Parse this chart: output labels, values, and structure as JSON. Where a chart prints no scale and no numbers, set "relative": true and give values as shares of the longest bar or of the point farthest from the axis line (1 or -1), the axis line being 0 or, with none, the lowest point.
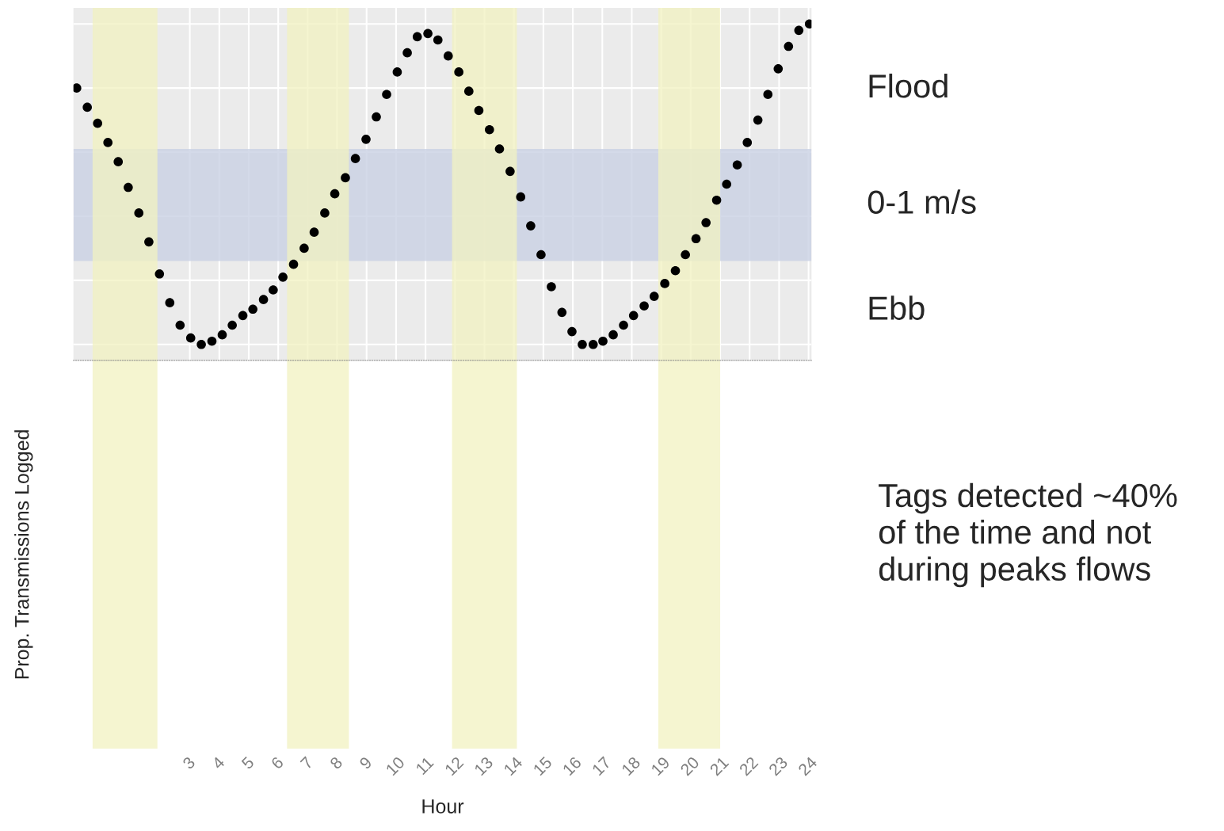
{
  "chart_data": {
    "type": "scatter",
    "relative": true,
    "xlabel": "Hour",
    "ylabel": "Prop. Transmissions Logged",
    "xlim": [
      -0.95,
      24.1
    ],
    "xticks": [
      3,
      4,
      5,
      6,
      7,
      8,
      9,
      10,
      11,
      12,
      13,
      14,
      15,
      16,
      17,
      18,
      19,
      20,
      21,
      22,
      23,
      24
    ],
    "tick_labels": "x",
    "grid": true,
    "marker": "circle",
    "series": [
      {
        "color": "#000000",
        "x": [
          -0.84,
          -0.48,
          -0.13,
          0.22,
          0.57,
          0.91,
          1.27,
          1.61,
          1.97,
          2.32,
          2.67,
          3.03,
          3.39,
          3.75,
          4.1,
          4.44,
          4.8,
          5.14,
          5.5,
          5.83,
          6.16,
          6.52,
          6.88,
          7.22,
          7.58,
          7.92,
          8.28,
          8.62,
          8.98,
          9.33,
          9.68,
          10.04,
          10.38,
          10.72,
          11.08,
          11.42,
          11.77,
          12.13,
          12.47,
          12.81,
          13.17,
          13.51,
          13.87,
          14.23,
          14.57,
          14.92,
          15.27,
          15.63,
          15.97,
          16.32,
          16.69,
          17.02,
          17.37,
          17.72,
          18.06,
          18.42,
          18.76,
          19.12,
          19.48,
          19.82,
          20.18,
          20.52,
          20.88,
          21.22,
          21.58,
          21.92,
          22.28,
          22.62,
          22.97,
          23.32,
          23.67,
          24.03
        ],
        "values": [
          0.8,
          0.74,
          0.69,
          0.63,
          0.57,
          0.49,
          0.41,
          0.32,
          0.22,
          0.13,
          0.06,
          0.02,
          0.0,
          0.01,
          0.03,
          0.06,
          0.09,
          0.11,
          0.14,
          0.17,
          0.21,
          0.25,
          0.3,
          0.35,
          0.41,
          0.47,
          0.52,
          0.58,
          0.64,
          0.71,
          0.78,
          0.85,
          0.91,
          0.96,
          0.97,
          0.95,
          0.9,
          0.85,
          0.79,
          0.73,
          0.67,
          0.61,
          0.54,
          0.46,
          0.37,
          0.28,
          0.18,
          0.1,
          0.04,
          0.0,
          0.0,
          0.01,
          0.03,
          0.06,
          0.09,
          0.12,
          0.15,
          0.19,
          0.23,
          0.28,
          0.33,
          0.38,
          0.45,
          0.5,
          0.56,
          0.63,
          0.7,
          0.78,
          0.86,
          0.93,
          0.98,
          1.0
        ]
      }
    ],
    "bands": [
      {
        "axis": "y",
        "from": 0.26,
        "to": 0.61,
        "label": "0-1 m/s",
        "color": "#c9d1e3"
      },
      {
        "axis": "x",
        "from": -0.3,
        "to": 1.9,
        "color": "#f1f1c0"
      },
      {
        "axis": "x",
        "from": 6.3,
        "to": 8.4,
        "color": "#f1f1c0"
      },
      {
        "axis": "x",
        "from": 11.9,
        "to": 14.1,
        "color": "#f1f1c0"
      },
      {
        "axis": "x",
        "from": 18.9,
        "to": 21.0,
        "color": "#f1f1c0"
      }
    ],
    "annotations": [
      "Flood",
      "Ebb",
      "Tags detected ~40%\nof the time and not\nduring peaks flows"
    ]
  }
}
